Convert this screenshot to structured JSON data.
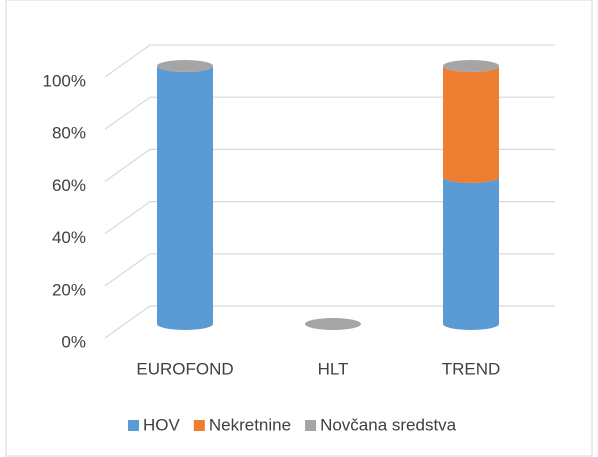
{
  "chart_data": {
    "type": "bar",
    "stacked": true,
    "categories": [
      "EUROFOND",
      "HLT",
      "TREND"
    ],
    "series": [
      {
        "name": "HOV",
        "color": "#5b9bd5",
        "values": [
          100,
          0,
          57
        ]
      },
      {
        "name": "Nekretnine",
        "color": "#ed7d31",
        "values": [
          0,
          0,
          43
        ]
      },
      {
        "name": "Novčana sredstva",
        "color": "#a5a5a5",
        "values": [
          0,
          0,
          0
        ]
      }
    ],
    "ylim": [
      0,
      100
    ],
    "yticks": [
      {
        "value": 0,
        "label": "0%"
      },
      {
        "value": 20,
        "label": "20%"
      },
      {
        "value": 40,
        "label": "40%"
      },
      {
        "value": 60,
        "label": "60%"
      },
      {
        "value": 80,
        "label": "80%"
      },
      {
        "value": 100,
        "label": "100%"
      }
    ],
    "grid": true,
    "legend": "bottom"
  }
}
